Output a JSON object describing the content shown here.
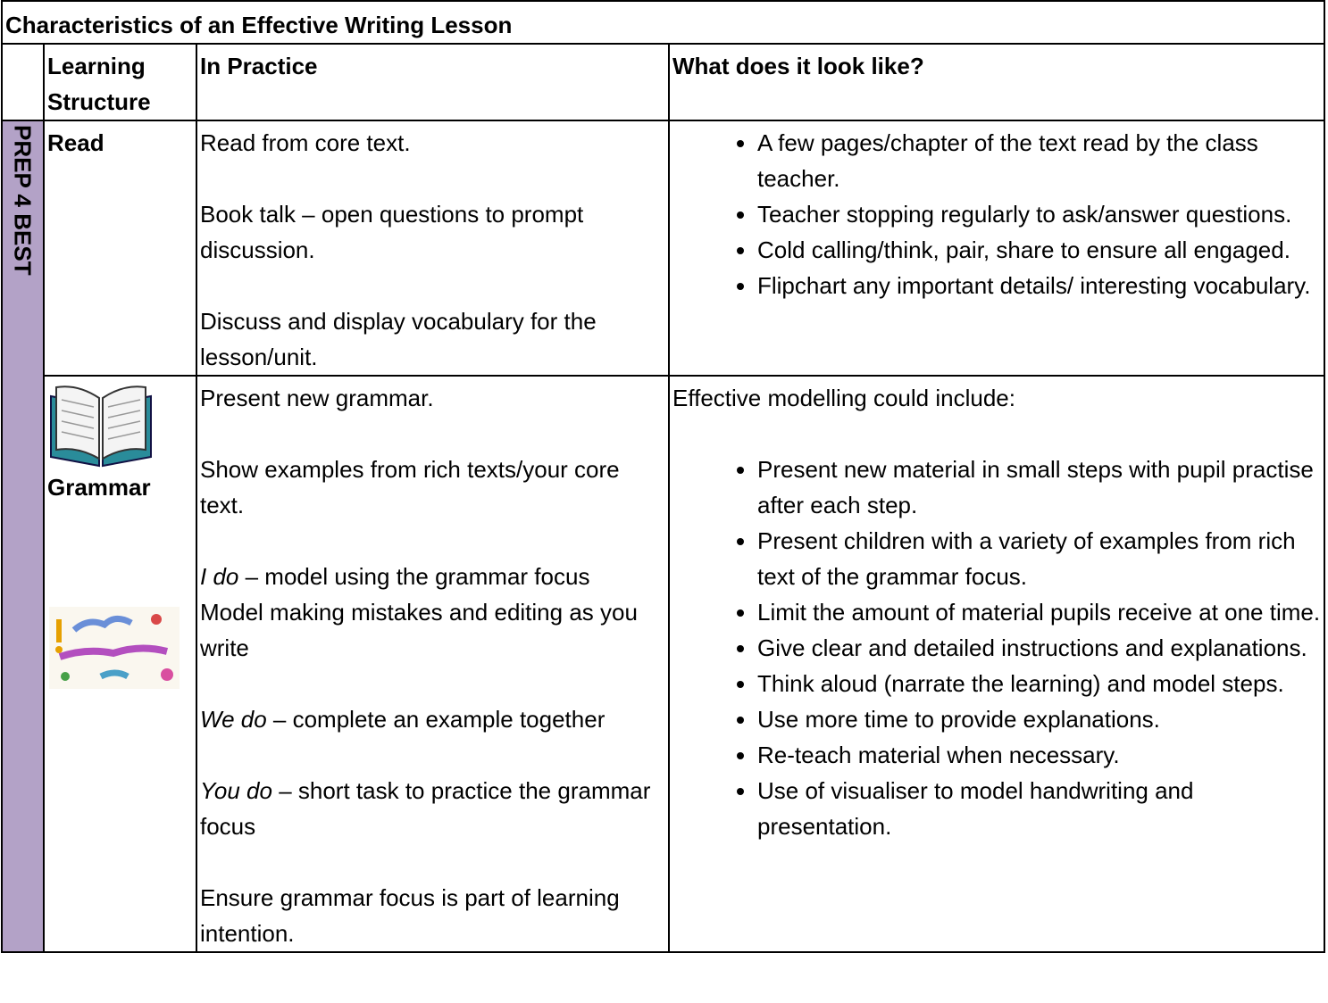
{
  "title": "Characteristics of an Effective Writing Lesson",
  "header": [
    "Learning Structure",
    "In Practice",
    "What does it look like?"
  ],
  "side_label": "PREP 4 BEST",
  "rows": [
    {
      "structure": "Read",
      "practice": [
        [
          {
            "text": "Read from core text."
          }
        ],
        [
          {
            "text": "Book talk – open questions to prompt discussion."
          }
        ],
        [
          {
            "text": "Discuss and display vocabulary for the lesson/unit."
          }
        ]
      ],
      "look_intro": null,
      "look": [
        "A few pages/chapter of the text read by the class teacher.",
        "Teacher stopping regularly to ask/answer questions.",
        "Cold calling/think, pair, share to ensure all engaged.",
        "Flipchart any important details/ interesting vocabulary."
      ]
    },
    {
      "structure": "Grammar",
      "practice": [
        [
          {
            "text": "Present new grammar."
          }
        ],
        [
          {
            "text": "Show examples from rich texts/your core text."
          }
        ],
        [
          {
            "em": "I do",
            "text": " – model using the grammar focus"
          },
          {
            "text": "Model making mistakes and editing as you write"
          }
        ],
        [
          {
            "em": "We do",
            "text": " – complete an example together"
          }
        ],
        [
          {
            "em": "You do",
            "text": " – short task to practice the grammar focus"
          }
        ],
        [
          {
            "text": "Ensure grammar focus is part of learning intention."
          }
        ]
      ],
      "look_intro": "Effective modelling could include:",
      "look": [
        "Present new material in small steps with pupil practise after each step.",
        "Present children with a variety of examples from rich text of the grammar focus.",
        "Limit the amount of material pupils receive at one time.",
        "Give clear and detailed instructions and explanations.",
        "Think aloud (narrate the learning) and model steps.",
        "Use more time to provide explanations.",
        "Re-teach material when necessary.",
        "Use of visualiser to model handwriting and presentation."
      ]
    }
  ]
}
